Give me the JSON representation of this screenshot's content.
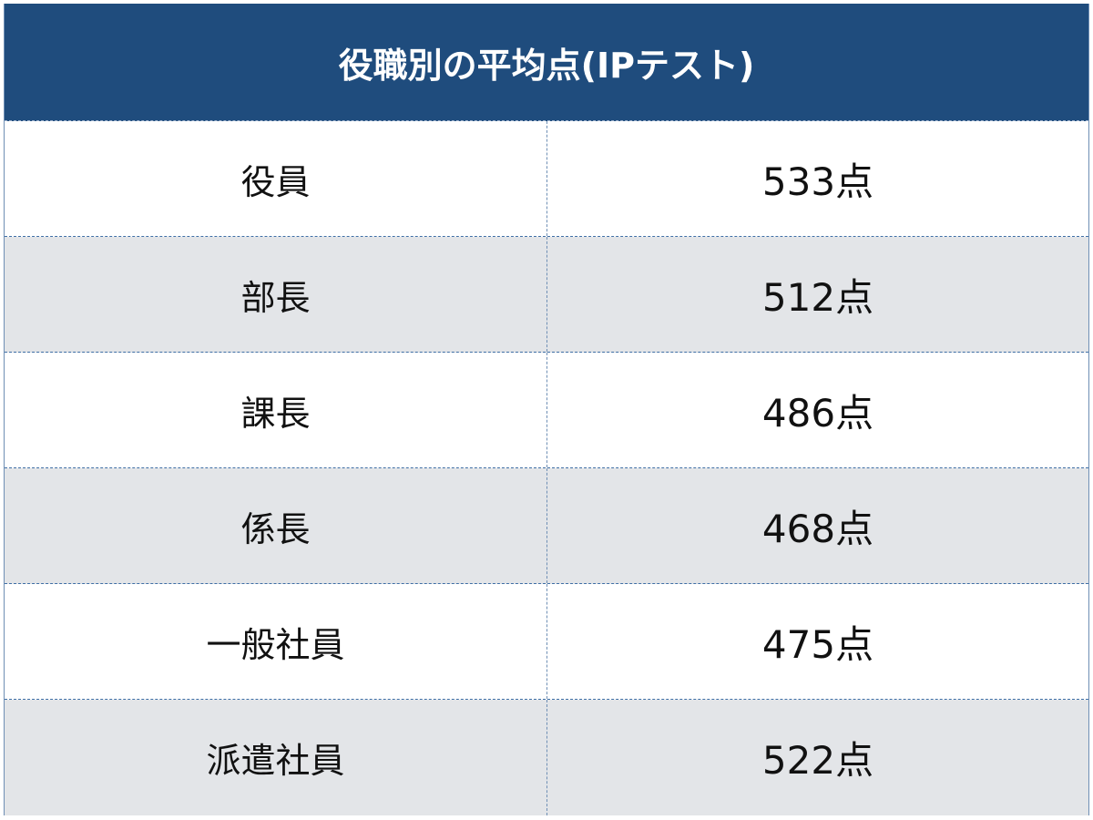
{
  "title": "役職別の平均点(IPテスト)",
  "colors": {
    "header_bg": "#1f4c7d",
    "alt_row_bg": "#e3e5e8"
  },
  "rows": [
    {
      "position": "役員",
      "score": "533点"
    },
    {
      "position": "部長",
      "score": "512点"
    },
    {
      "position": "課長",
      "score": "486点"
    },
    {
      "position": "係長",
      "score": "468点"
    },
    {
      "position": "一般社員",
      "score": "475点"
    },
    {
      "position": "派遣社員",
      "score": "522点"
    }
  ]
}
